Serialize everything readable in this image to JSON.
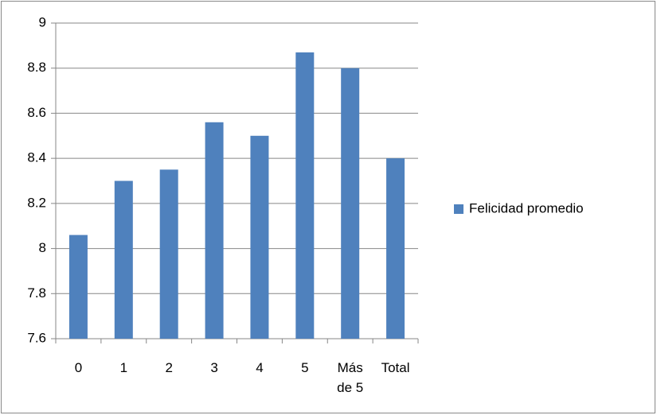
{
  "chart_data": {
    "type": "bar",
    "categories": [
      "0",
      "1",
      "2",
      "3",
      "4",
      "5",
      "Más de 5",
      "Total"
    ],
    "series": [
      {
        "name": "Felicidad promedio",
        "color": "#4f81bd",
        "values": [
          8.06,
          8.3,
          8.35,
          8.56,
          8.5,
          8.87,
          8.8,
          8.4
        ]
      }
    ],
    "ylim": [
      7.6,
      9
    ],
    "yticks": [
      7.6,
      7.8,
      8,
      8.2,
      8.4,
      8.6,
      8.8,
      9
    ],
    "grid": true,
    "legend": "right"
  }
}
